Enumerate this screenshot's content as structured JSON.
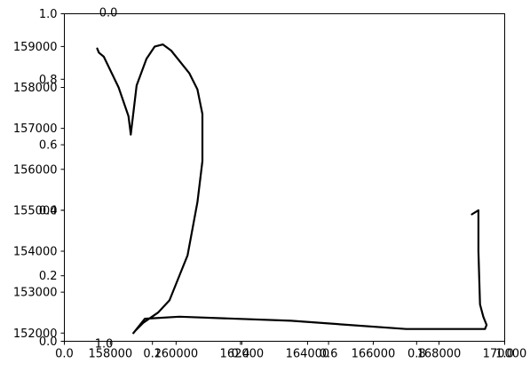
{
  "chart_data": {
    "type": "line",
    "title": "",
    "xlabel": "",
    "ylabel": "",
    "xlim": [
      156600,
      170000
    ],
    "ylim": [
      151800,
      159800
    ],
    "grid": false,
    "line_color": "#000000",
    "series": [
      {
        "x": [
          157600,
          157650,
          157800,
          158250,
          158550,
          158600,
          158620,
          158800,
          159100,
          159350,
          159600,
          159850,
          160400,
          160650,
          160800,
          160800,
          160650,
          160350,
          159800,
          159450,
          159000,
          158750,
          158700,
          159050,
          160100,
          163500,
          167000,
          167500,
          168850,
          169400,
          169450,
          169350,
          169250,
          169200,
          169200,
          169000
        ],
        "y": [
          158950,
          158850,
          158750,
          158000,
          157300,
          157000,
          156850,
          158050,
          158700,
          159000,
          159050,
          158900,
          158350,
          157950,
          157350,
          156200,
          155200,
          153900,
          152800,
          152500,
          152250,
          152050,
          152000,
          152350,
          152400,
          152300,
          152100,
          152100,
          152100,
          152100,
          152200,
          152400,
          152700,
          154000,
          155000,
          154900
        ]
      }
    ],
    "x_ticks": [
      {
        "value": 158000,
        "label": "158000"
      },
      {
        "value": 160000,
        "label": "160000"
      },
      {
        "value": 162000,
        "label": "162000"
      },
      {
        "value": 164000,
        "label": "164000"
      },
      {
        "value": 166000,
        "label": "166000"
      },
      {
        "value": 168000,
        "label": "168000"
      },
      {
        "value": 170000,
        "label": "170000"
      }
    ],
    "y_ticks": [
      {
        "value": 152000,
        "label": "152000"
      },
      {
        "value": 153000,
        "label": "153000"
      },
      {
        "value": 154000,
        "label": "154000"
      },
      {
        "value": 155000,
        "label": "155000"
      },
      {
        "value": 156000,
        "label": "156000"
      },
      {
        "value": 157000,
        "label": "157000"
      },
      {
        "value": 158000,
        "label": "158000"
      },
      {
        "value": 159000,
        "label": "159000"
      }
    ],
    "overlay_axis": {
      "xlim": [
        0,
        1
      ],
      "ylim": [
        0,
        1
      ],
      "x_ticks": [
        {
          "value": 0.0,
          "label": "0.0"
        },
        {
          "value": 0.2,
          "label": "0.2"
        },
        {
          "value": 0.4,
          "label": "0.4"
        },
        {
          "value": 0.6,
          "label": "0.6"
        },
        {
          "value": 0.8,
          "label": "0.8"
        },
        {
          "value": 1.0,
          "label": "1.0"
        }
      ],
      "y_ticks": [
        {
          "value": 0.0,
          "label": "0.0"
        },
        {
          "value": 0.2,
          "label": "0.2"
        },
        {
          "value": 0.4,
          "label": "0.4"
        },
        {
          "value": 0.6,
          "label": "0.6"
        },
        {
          "value": 0.8,
          "label": "0.8"
        },
        {
          "value": 1.0,
          "label": "1.0"
        }
      ],
      "edge_labels": [
        {
          "label": "0.0",
          "anchor": "top",
          "value": 0.1
        },
        {
          "label": "1.0",
          "anchor": "bottom",
          "value": 0.09
        }
      ]
    }
  }
}
